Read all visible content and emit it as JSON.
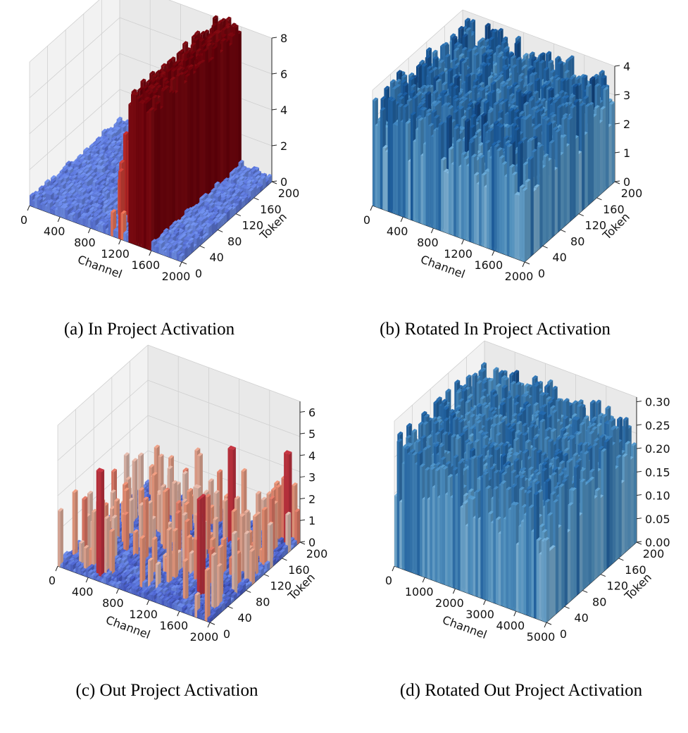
{
  "chart_data": [
    {
      "type": "bar3d",
      "panel": "a",
      "caption": "(a) In Project Activation",
      "xlabel": "Channel",
      "ylabel": "Token",
      "xlim": [
        0,
        2000
      ],
      "ylim": [
        0,
        200
      ],
      "zlim": [
        0,
        8
      ],
      "xticks": [
        "0",
        "400",
        "800",
        "1200",
        "1600",
        "2000"
      ],
      "yticks": [
        "0",
        "40",
        "80",
        "120",
        "160",
        "200"
      ],
      "zticks": [
        "0",
        "2",
        "4",
        "6",
        "8"
      ],
      "colormap": "coolwarm",
      "base_level": 0.4,
      "outlier_channels": [
        {
          "start": 1300,
          "end": 1600,
          "value": 8.4
        }
      ],
      "secondary_spikes": [
        {
          "channel_range": [
            1000,
            1300
          ],
          "max_value": 5.0
        }
      ]
    },
    {
      "type": "bar3d",
      "panel": "b",
      "caption": "(b) Rotated In Project Activation",
      "xlabel": "Channel",
      "ylabel": "Token",
      "xlim": [
        0,
        2000
      ],
      "ylim": [
        0,
        200
      ],
      "zlim": [
        0,
        4
      ],
      "xticks": [
        "0",
        "400",
        "800",
        "1200",
        "1600",
        "2000"
      ],
      "yticks": [
        "0",
        "40",
        "80",
        "120",
        "160",
        "200"
      ],
      "zticks": [
        "0",
        "1",
        "2",
        "3",
        "4"
      ],
      "colormap": "blues",
      "typical_value_range": [
        2.0,
        3.9
      ],
      "max_value": 4.0
    },
    {
      "type": "bar3d",
      "panel": "c",
      "caption": "(c) Out Project Activation",
      "xlabel": "Channel",
      "ylabel": "Token",
      "xlim": [
        0,
        2000
      ],
      "ylim": [
        0,
        200
      ],
      "zlim": [
        0,
        6.5
      ],
      "xticks": [
        "0",
        "400",
        "800",
        "1200",
        "1600",
        "2000"
      ],
      "yticks": [
        "0",
        "40",
        "80",
        "120",
        "160",
        "200"
      ],
      "zticks": [
        "0",
        "1",
        "2",
        "3",
        "4",
        "5",
        "6"
      ],
      "colormap": "coolwarm",
      "base_level": 0.2,
      "outlier_spikes": [
        {
          "channel": 500,
          "token": 10,
          "value": 4.9
        },
        {
          "channel": 1400,
          "token": 150,
          "value": 4.5
        },
        {
          "channel": 1900,
          "token": 190,
          "value": 4.2
        },
        {
          "channel": 1650,
          "token": 40,
          "value": 4.6
        }
      ]
    },
    {
      "type": "bar3d",
      "panel": "d",
      "caption": "(d) Rotated Out Project Activation",
      "xlabel": "Channel",
      "ylabel": "Token",
      "xlim": [
        0,
        5000
      ],
      "ylim": [
        0,
        200
      ],
      "zlim": [
        0,
        0.3
      ],
      "xticks": [
        "0",
        "1000",
        "2000",
        "3000",
        "4000",
        "5000"
      ],
      "yticks": [
        "0",
        "40",
        "80",
        "120",
        "160",
        "200"
      ],
      "zticks": [
        "0.00",
        "0.05",
        "0.10",
        "0.15",
        "0.20",
        "0.25",
        "0.30"
      ],
      "colormap": "blues",
      "typical_value_range": [
        0.14,
        0.28
      ],
      "max_value": 0.31
    }
  ]
}
